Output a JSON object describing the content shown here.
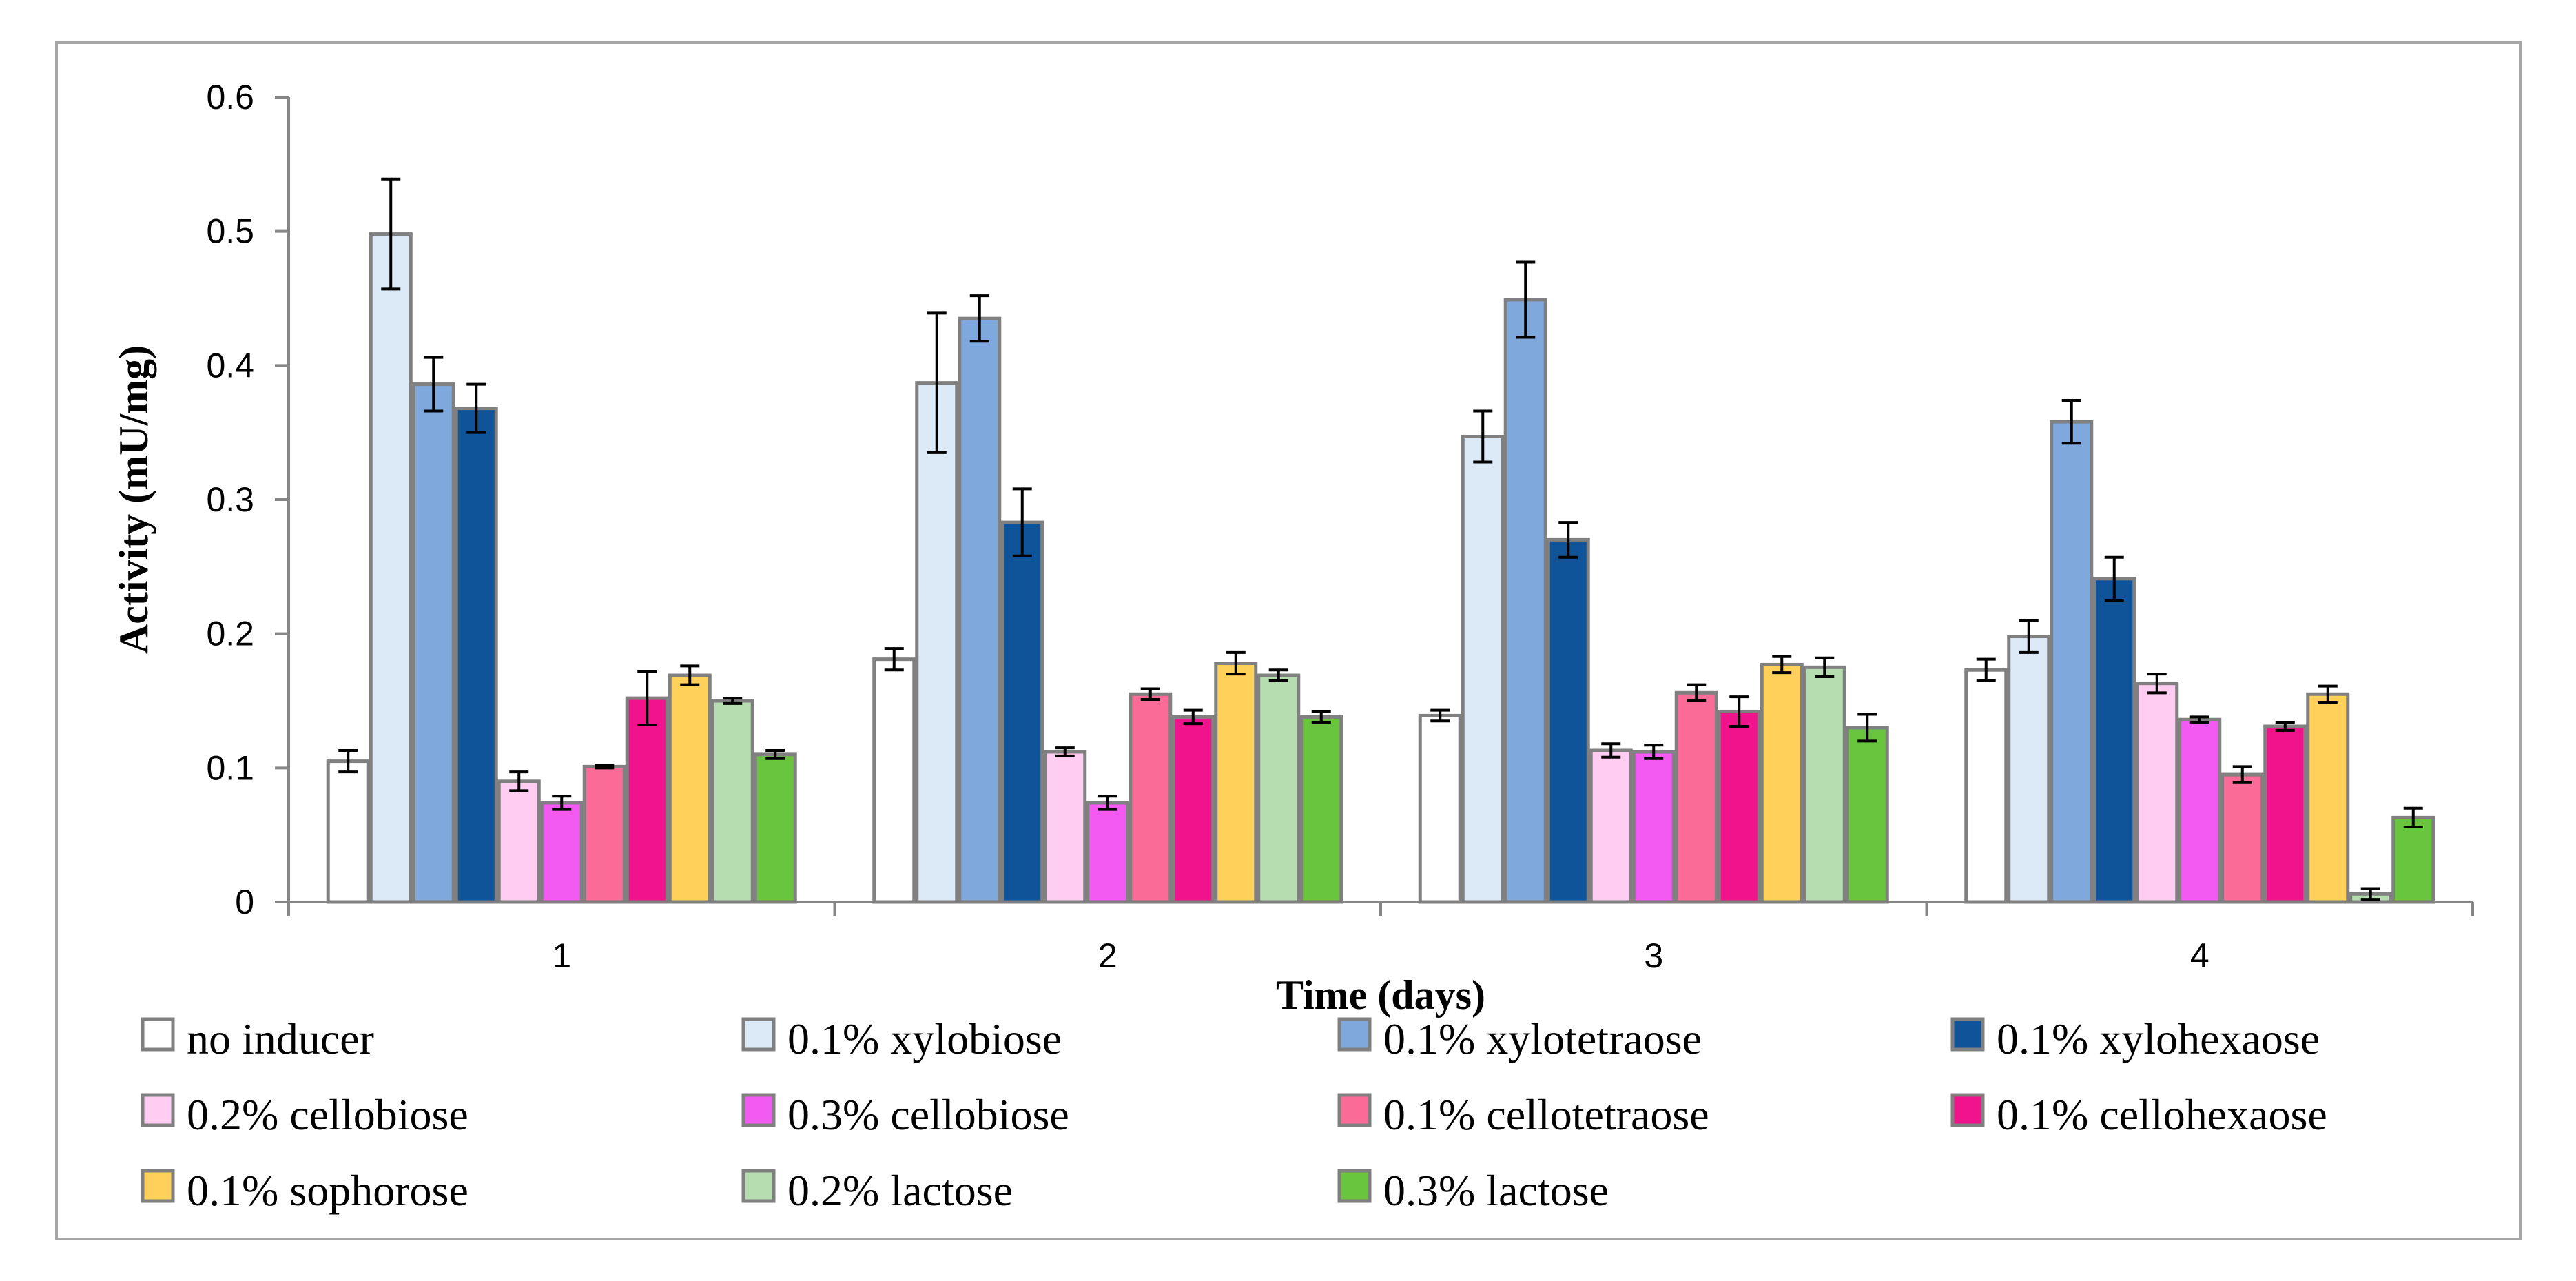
{
  "chart_data": {
    "type": "bar",
    "title": "",
    "xlabel": "Time (days)",
    "ylabel": "Activity (mU/mg)",
    "ylim": [
      0,
      0.6
    ],
    "yticks": [
      0,
      0.1,
      0.2,
      0.3,
      0.4,
      0.5,
      0.6
    ],
    "ytick_labels": [
      "0",
      "0.1",
      "0.2",
      "0.3",
      "0.4",
      "0.5",
      "0.6"
    ],
    "categories": [
      "1",
      "2",
      "3",
      "4"
    ],
    "grid": false,
    "legend_position": "bottom",
    "series": [
      {
        "name": "no inducer",
        "color": "#ffffff",
        "values": [
          0.105,
          0.181,
          0.139,
          0.173
        ],
        "errors": [
          0.008,
          0.008,
          0.004,
          0.008
        ]
      },
      {
        "name": "0.1% xylobiose",
        "color": "#dce9f6",
        "values": [
          0.498,
          0.387,
          0.347,
          0.198
        ],
        "errors": [
          0.041,
          0.052,
          0.019,
          0.012
        ]
      },
      {
        "name": "0.1% xylotetraose",
        "color": "#7fa8dc",
        "values": [
          0.386,
          0.435,
          0.449,
          0.358
        ],
        "errors": [
          0.02,
          0.017,
          0.028,
          0.016
        ]
      },
      {
        "name": "0.1% xylohexaose",
        "color": "#0f5499",
        "values": [
          0.368,
          0.283,
          0.27,
          0.241
        ],
        "errors": [
          0.018,
          0.025,
          0.013,
          0.016
        ]
      },
      {
        "name": "0.2% cellobiose",
        "color": "#ffccf2",
        "values": [
          0.09,
          0.112,
          0.113,
          0.163
        ],
        "errors": [
          0.007,
          0.003,
          0.005,
          0.007
        ]
      },
      {
        "name": "0.3% cellobiose",
        "color": "#f25af2",
        "values": [
          0.074,
          0.074,
          0.112,
          0.136
        ],
        "errors": [
          0.005,
          0.005,
          0.005,
          0.002
        ]
      },
      {
        "name": "0.1% cellotetraose",
        "color": "#fa6c97",
        "values": [
          0.101,
          0.155,
          0.156,
          0.095
        ],
        "errors": [
          0.001,
          0.004,
          0.006,
          0.006
        ]
      },
      {
        "name": "0.1% cellohexaose",
        "color": "#f0138c",
        "values": [
          0.152,
          0.138,
          0.142,
          0.131
        ],
        "errors": [
          0.02,
          0.005,
          0.011,
          0.003
        ]
      },
      {
        "name": "0.1% sophorose",
        "color": "#ffd15a",
        "values": [
          0.169,
          0.178,
          0.177,
          0.155
        ],
        "errors": [
          0.007,
          0.008,
          0.006,
          0.006
        ]
      },
      {
        "name": "0.2% lactose",
        "color": "#b5ddb0",
        "values": [
          0.15,
          0.169,
          0.175,
          0.006
        ],
        "errors": [
          0.002,
          0.004,
          0.007,
          0.004
        ]
      },
      {
        "name": "0.3% lactose",
        "color": "#6ac53e",
        "values": [
          0.11,
          0.138,
          0.13,
          0.063
        ],
        "errors": [
          0.003,
          0.004,
          0.01,
          0.007
        ]
      }
    ]
  }
}
